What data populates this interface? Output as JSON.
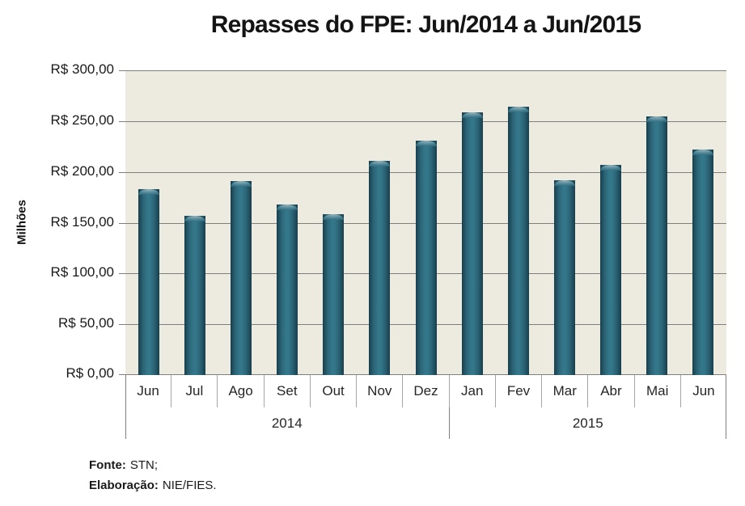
{
  "chart_data": {
    "type": "bar",
    "title": "Repasses do FPE: Jun/2014 a Jun/2015",
    "ylabel": "Milhões",
    "xlabel": "",
    "ylim": [
      0,
      300
    ],
    "yticks": [
      300,
      250,
      200,
      150,
      100,
      50,
      0
    ],
    "ytick_labels": [
      "R$ 300,00",
      "R$ 250,00",
      "R$ 200,00",
      "R$ 150,00",
      "R$ 100,00",
      "R$ 50,00",
      "R$ 0,00"
    ],
    "categories": [
      "Jun",
      "Jul",
      "Ago",
      "Set",
      "Out",
      "Nov",
      "Dez",
      "Jan",
      "Fev",
      "Mar",
      "Abr",
      "Mai",
      "Jun"
    ],
    "values": [
      183,
      157,
      191,
      168,
      158,
      211,
      231,
      259,
      264,
      192,
      207,
      255,
      222
    ],
    "groups": [
      {
        "label": "2014",
        "span": 7
      },
      {
        "label": "2015",
        "span": 6
      }
    ],
    "grid": true,
    "legend_position": "none",
    "bar_color": "#316E80",
    "bar_edge_color": "#173E4C",
    "bar_highlight_color": "#9FB4BA",
    "plot_bg_color": "#EDEBE0",
    "gridline_color": "#7F7F7F"
  },
  "footer": {
    "fonte_label": "Fonte:",
    "fonte_value": "STN;",
    "elaboracao_label": "Elaboração:",
    "elaboracao_value": "NIE/FIES."
  }
}
